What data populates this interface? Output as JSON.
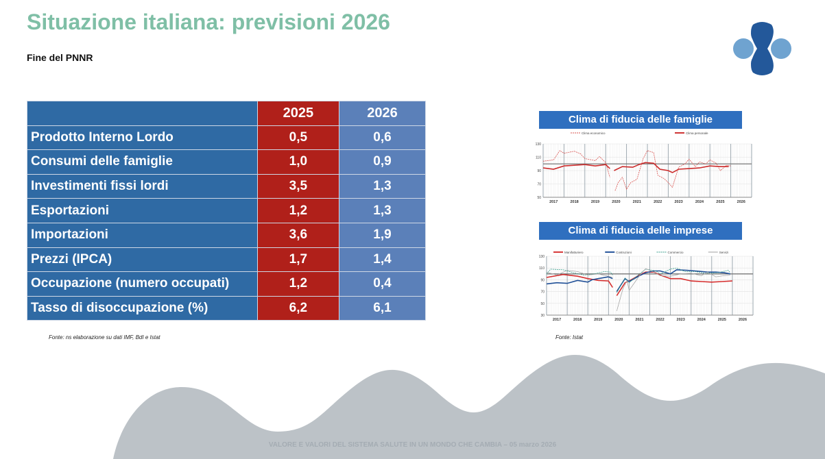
{
  "title": "Situazione italiana: previsioni 2026",
  "subtitle": "Fine del PNNR",
  "table": {
    "headers": [
      "",
      "2025",
      "2026"
    ],
    "rows": [
      {
        "label": "Prodotto Interno Lordo",
        "v2025": "0,5",
        "v2026": "0,6"
      },
      {
        "label": "Consumi delle famiglie",
        "v2025": "1,0",
        "v2026": "0,9"
      },
      {
        "label": "Investimenti fissi lordi",
        "v2025": "3,5",
        "v2026": "1,3"
      },
      {
        "label": "Esportazioni",
        "v2025": "1,2",
        "v2026": "1,3"
      },
      {
        "label": "Importazioni",
        "v2025": "3,6",
        "v2026": "1,9"
      },
      {
        "label": "Prezzi (IPCA)",
        "v2025": "1,7",
        "v2026": "1,4"
      },
      {
        "label": "Occupazione (numero occupati)",
        "v2025": "1,2",
        "v2026": "0,4"
      },
      {
        "label": "Tasso di disoccupazione  (%)",
        "v2025": "6,2",
        "v2026": "6,1"
      }
    ],
    "source": "Fonte: ns elaborazione su dati IMF, BdI e Istat"
  },
  "colors": {
    "title": "#7fbfa6",
    "col_label": "#2f6aa4",
    "col_2025": "#b0201a",
    "col_2026": "#5b80b9",
    "chart_header": "#2f6fbf",
    "logo_dark": "#23589a",
    "logo_light": "#6fa3d0"
  },
  "charts_source": "Fonte: Istat",
  "footer": "VALORE E VALORI DEL SISTEMA SALUTE IN UN MONDO CHE CAMBIA – 05 marzo 2026",
  "chart_data": [
    {
      "type": "line",
      "title": "Clima di fiducia delle famiglie",
      "ylim": [
        50,
        130
      ],
      "yticks": [
        50,
        70,
        90,
        110,
        130
      ],
      "xlim": [
        2017,
        2027
      ],
      "xtick_labels": [
        "2017",
        "2018",
        "2019",
        "2020",
        "2021",
        "2022",
        "2023",
        "2024",
        "2025",
        "2026"
      ],
      "reference_line": 100,
      "grid": true,
      "legend": "top",
      "series": [
        {
          "name": "Clima economico",
          "style": "dashed",
          "color": "#d9534f",
          "points": [
            [
              2017.0,
              104
            ],
            [
              2017.5,
              106
            ],
            [
              2017.8,
              120
            ],
            [
              2018.0,
              116
            ],
            [
              2018.5,
              119
            ],
            [
              2018.8,
              115
            ],
            [
              2019.0,
              108
            ],
            [
              2019.5,
              105
            ],
            [
              2019.7,
              111
            ],
            [
              2020.0,
              102
            ],
            [
              2020.2,
              80
            ],
            [
              2020.4,
              null
            ],
            [
              2020.45,
              60
            ],
            [
              2020.6,
              72
            ],
            [
              2020.8,
              80
            ],
            [
              2021.0,
              62
            ],
            [
              2021.2,
              72
            ],
            [
              2021.5,
              77
            ],
            [
              2021.8,
              108
            ],
            [
              2022.0,
              120
            ],
            [
              2022.3,
              117
            ],
            [
              2022.5,
              83
            ],
            [
              2022.8,
              78
            ],
            [
              2023.0,
              72
            ],
            [
              2023.2,
              65
            ],
            [
              2023.5,
              95
            ],
            [
              2023.8,
              100
            ],
            [
              2024.0,
              107
            ],
            [
              2024.3,
              96
            ],
            [
              2024.5,
              103
            ],
            [
              2024.8,
              100
            ],
            [
              2025.0,
              106
            ],
            [
              2025.3,
              101
            ],
            [
              2025.5,
              90
            ],
            [
              2025.8,
              98
            ],
            [
              2026.0,
              97
            ]
          ]
        },
        {
          "name": "Clima personale",
          "style": "solid",
          "color": "#cc2a2a",
          "points": [
            [
              2017.0,
              94
            ],
            [
              2017.5,
              92
            ],
            [
              2018.0,
              97
            ],
            [
              2018.5,
              98
            ],
            [
              2019.0,
              99
            ],
            [
              2019.5,
              97
            ],
            [
              2020.0,
              99
            ],
            [
              2020.2,
              93
            ],
            [
              2020.3,
              null
            ],
            [
              2020.4,
              90
            ],
            [
              2020.8,
              96
            ],
            [
              2021.3,
              95
            ],
            [
              2021.6,
              99
            ],
            [
              2021.9,
              102
            ],
            [
              2022.3,
              101
            ],
            [
              2022.6,
              92
            ],
            [
              2023.0,
              90
            ],
            [
              2023.2,
              87
            ],
            [
              2023.5,
              92
            ],
            [
              2024.0,
              93
            ],
            [
              2024.5,
              94
            ],
            [
              2025.0,
              97
            ],
            [
              2025.5,
              96
            ],
            [
              2025.9,
              96
            ]
          ]
        }
      ]
    },
    {
      "type": "line",
      "title": "Clima di fiducia delle imprese",
      "ylim": [
        30,
        130
      ],
      "yticks": [
        30,
        50,
        70,
        90,
        110,
        130
      ],
      "xlim": [
        2017,
        2027
      ],
      "xtick_labels": [
        "2017",
        "2018",
        "2019",
        "2020",
        "2021",
        "2022",
        "2023",
        "2024",
        "2025",
        "2026"
      ],
      "reference_line": 100,
      "grid": true,
      "legend": "top",
      "series": [
        {
          "name": "Manifatturiero",
          "style": "solid",
          "color": "#d62f2f",
          "points": [
            [
              2017.0,
              94
            ],
            [
              2017.8,
              99
            ],
            [
              2018.5,
              96
            ],
            [
              2019.0,
              92
            ],
            [
              2019.5,
              89
            ],
            [
              2020.0,
              88
            ],
            [
              2020.2,
              77
            ],
            [
              2020.3,
              null
            ],
            [
              2020.4,
              63
            ],
            [
              2020.8,
              85
            ],
            [
              2021.0,
              88
            ],
            [
              2021.5,
              98
            ],
            [
              2021.8,
              103
            ],
            [
              2022.2,
              103
            ],
            [
              2022.5,
              98
            ],
            [
              2023.0,
              92
            ],
            [
              2023.5,
              92
            ],
            [
              2024.0,
              88
            ],
            [
              2024.5,
              87
            ],
            [
              2025.0,
              86
            ],
            [
              2025.5,
              87
            ],
            [
              2026.0,
              88
            ]
          ]
        },
        {
          "name": "Costruzioni",
          "style": "solid",
          "color": "#1f4f97",
          "points": [
            [
              2017.0,
              83
            ],
            [
              2017.5,
              85
            ],
            [
              2018.0,
              84
            ],
            [
              2018.5,
              89
            ],
            [
              2019.0,
              86
            ],
            [
              2019.2,
              90
            ],
            [
              2019.5,
              92
            ],
            [
              2020.0,
              95
            ],
            [
              2020.2,
              92
            ],
            [
              2020.3,
              null
            ],
            [
              2020.4,
              70
            ],
            [
              2020.8,
              92
            ],
            [
              2021.0,
              87
            ],
            [
              2021.5,
              97
            ],
            [
              2021.8,
              102
            ],
            [
              2022.2,
              105
            ],
            [
              2022.5,
              105
            ],
            [
              2023.0,
              100
            ],
            [
              2023.3,
              107
            ],
            [
              2023.8,
              106
            ],
            [
              2024.2,
              105
            ],
            [
              2024.8,
              103
            ],
            [
              2025.2,
              103
            ],
            [
              2025.6,
              102
            ],
            [
              2025.9,
              100
            ]
          ]
        },
        {
          "name": "Commercio",
          "style": "dashed",
          "color": "#3a9e8c",
          "points": [
            [
              2017.0,
              100
            ],
            [
              2017.2,
              108
            ],
            [
              2017.8,
              107
            ],
            [
              2018.3,
              102
            ],
            [
              2018.8,
              98
            ],
            [
              2019.3,
              100
            ],
            [
              2019.8,
              104
            ],
            [
              2020.1,
              103
            ],
            [
              2020.2,
              98
            ],
            [
              2020.3,
              null
            ],
            [
              2020.4,
              68
            ],
            [
              2020.8,
              93
            ],
            [
              2021.0,
              85
            ],
            [
              2021.5,
              100
            ],
            [
              2021.8,
              108
            ],
            [
              2022.3,
              105
            ],
            [
              2022.5,
              100
            ],
            [
              2023.0,
              108
            ],
            [
              2023.3,
              110
            ],
            [
              2023.7,
              104
            ],
            [
              2024.2,
              104
            ],
            [
              2024.7,
              101
            ],
            [
              2025.3,
              102
            ],
            [
              2025.8,
              106
            ],
            [
              2025.9,
              102
            ]
          ]
        },
        {
          "name": "Servizi",
          "style": "solid",
          "color": "#a8a8a8",
          "points": [
            [
              2017.0,
              103
            ],
            [
              2017.5,
              98
            ],
            [
              2018.0,
              106
            ],
            [
              2018.5,
              104
            ],
            [
              2019.0,
              98
            ],
            [
              2019.5,
              100
            ],
            [
              2020.0,
              96
            ],
            [
              2020.2,
              94
            ],
            [
              2020.3,
              null
            ],
            [
              2020.4,
              37
            ],
            [
              2020.7,
              75
            ],
            [
              2020.9,
              89
            ],
            [
              2021.0,
              72
            ],
            [
              2021.5,
              97
            ],
            [
              2021.8,
              109
            ],
            [
              2022.2,
              103
            ],
            [
              2022.5,
              97
            ],
            [
              2023.0,
              96
            ],
            [
              2023.5,
              100
            ],
            [
              2024.0,
              101
            ],
            [
              2024.5,
              97
            ],
            [
              2024.8,
              103
            ],
            [
              2025.2,
              95
            ],
            [
              2025.6,
              97
            ],
            [
              2025.9,
              98
            ]
          ]
        }
      ]
    }
  ]
}
